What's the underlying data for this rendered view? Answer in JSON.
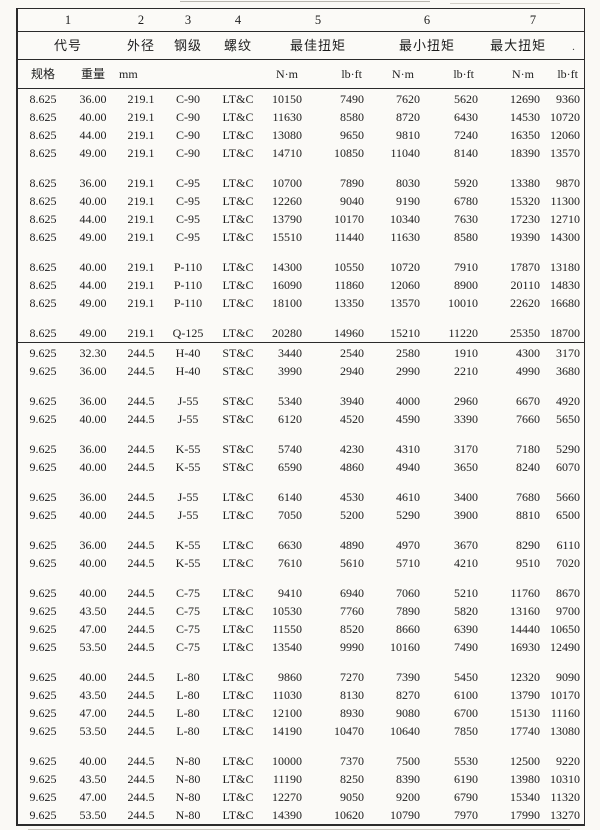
{
  "table": {
    "column_numbers": [
      "1",
      "2",
      "3",
      "4",
      "5",
      "6",
      "7"
    ],
    "headers": {
      "code": "代号",
      "outer_diameter": "外径",
      "steel_grade": "钢级",
      "thread": "螺纹",
      "optimal_torque": "最佳扭矩",
      "min_torque": "最小扭矩",
      "max_torque": "最大扭矩"
    },
    "artifacts": {
      "stray_dot": "."
    },
    "subheaders": {
      "spec": "规格",
      "weight": "重量",
      "mm": "mm",
      "nm": "N·m",
      "lbft": "lb·ft"
    },
    "sections": [
      {
        "groups": [
          {
            "rows": [
              [
                "8.625",
                "36.00",
                "219.1",
                "C-90",
                "LT&C",
                "10150",
                "7490",
                "7620",
                "5620",
                "12690",
                "9360"
              ],
              [
                "8.625",
                "40.00",
                "219.1",
                "C-90",
                "LT&C",
                "11630",
                "8580",
                "8720",
                "6430",
                "14530",
                "10720"
              ],
              [
                "8.625",
                "44.00",
                "219.1",
                "C-90",
                "LT&C",
                "13080",
                "9650",
                "9810",
                "7240",
                "16350",
                "12060"
              ],
              [
                "8.625",
                "49.00",
                "219.1",
                "C-90",
                "LT&C",
                "14710",
                "10850",
                "11040",
                "8140",
                "18390",
                "13570"
              ]
            ]
          },
          {
            "rows": [
              [
                "8.625",
                "36.00",
                "219.1",
                "C-95",
                "LT&C",
                "10700",
                "7890",
                "8030",
                "5920",
                "13380",
                "9870"
              ],
              [
                "8.625",
                "40.00",
                "219.1",
                "C-95",
                "LT&C",
                "12260",
                "9040",
                "9190",
                "6780",
                "15320",
                "11300"
              ],
              [
                "8.625",
                "44.00",
                "219.1",
                "C-95",
                "LT&C",
                "13790",
                "10170",
                "10340",
                "7630",
                "17230",
                "12710"
              ],
              [
                "8.625",
                "49.00",
                "219.1",
                "C-95",
                "LT&C",
                "15510",
                "11440",
                "11630",
                "8580",
                "19390",
                "14300"
              ]
            ]
          },
          {
            "rows": [
              [
                "8.625",
                "40.00",
                "219.1",
                "P-110",
                "LT&C",
                "14300",
                "10550",
                "10720",
                "7910",
                "17870",
                "13180"
              ],
              [
                "8.625",
                "44.00",
                "219.1",
                "P-110",
                "LT&C",
                "16090",
                "11860",
                "12060",
                "8900",
                "20110",
                "14830"
              ],
              [
                "8.625",
                "49.00",
                "219.1",
                "P-110",
                "LT&C",
                "18100",
                "13350",
                "13570",
                "10010",
                "22620",
                "16680"
              ]
            ]
          },
          {
            "rows": [
              [
                "8.625",
                "49.00",
                "219.1",
                "Q-125",
                "LT&C",
                "20280",
                "14960",
                "15210",
                "11220",
                "25350",
                "18700"
              ]
            ]
          }
        ]
      },
      {
        "groups": [
          {
            "rows": [
              [
                "9.625",
                "32.30",
                "244.5",
                "H-40",
                "ST&C",
                "3440",
                "2540",
                "2580",
                "1910",
                "4300",
                "3170"
              ],
              [
                "9.625",
                "36.00",
                "244.5",
                "H-40",
                "ST&C",
                "3990",
                "2940",
                "2990",
                "2210",
                "4990",
                "3680"
              ]
            ]
          },
          {
            "rows": [
              [
                "9.625",
                "36.00",
                "244.5",
                "J-55",
                "ST&C",
                "5340",
                "3940",
                "4000",
                "2960",
                "6670",
                "4920"
              ],
              [
                "9.625",
                "40.00",
                "244.5",
                "J-55",
                "ST&C",
                "6120",
                "4520",
                "4590",
                "3390",
                "7660",
                "5650"
              ]
            ]
          },
          {
            "rows": [
              [
                "9.625",
                "36.00",
                "244.5",
                "K-55",
                "ST&C",
                "5740",
                "4230",
                "4310",
                "3170",
                "7180",
                "5290"
              ],
              [
                "9.625",
                "40.00",
                "244.5",
                "K-55",
                "ST&C",
                "6590",
                "4860",
                "4940",
                "3650",
                "8240",
                "6070"
              ]
            ]
          },
          {
            "rows": [
              [
                "9.625",
                "36.00",
                "244.5",
                "J-55",
                "LT&C",
                "6140",
                "4530",
                "4610",
                "3400",
                "7680",
                "5660"
              ],
              [
                "9.625",
                "40.00",
                "244.5",
                "J-55",
                "LT&C",
                "7050",
                "5200",
                "5290",
                "3900",
                "8810",
                "6500"
              ]
            ]
          },
          {
            "rows": [
              [
                "9.625",
                "36.00",
                "244.5",
                "K-55",
                "LT&C",
                "6630",
                "4890",
                "4970",
                "3670",
                "8290",
                "6110"
              ],
              [
                "9.625",
                "40.00",
                "244.5",
                "K-55",
                "LT&C",
                "7610",
                "5610",
                "5710",
                "4210",
                "9510",
                "7020"
              ]
            ]
          },
          {
            "rows": [
              [
                "9.625",
                "40.00",
                "244.5",
                "C-75",
                "LT&C",
                "9410",
                "6940",
                "7060",
                "5210",
                "11760",
                "8670"
              ],
              [
                "9.625",
                "43.50",
                "244.5",
                "C-75",
                "LT&C",
                "10530",
                "7760",
                "7890",
                "5820",
                "13160",
                "9700"
              ],
              [
                "9.625",
                "47.00",
                "244.5",
                "C-75",
                "LT&C",
                "11550",
                "8520",
                "8660",
                "6390",
                "14440",
                "10650"
              ],
              [
                "9.625",
                "53.50",
                "244.5",
                "C-75",
                "LT&C",
                "13540",
                "9990",
                "10160",
                "7490",
                "16930",
                "12490"
              ]
            ]
          },
          {
            "rows": [
              [
                "9.625",
                "40.00",
                "244.5",
                "L-80",
                "LT&C",
                "9860",
                "7270",
                "7390",
                "5450",
                "12320",
                "9090"
              ],
              [
                "9.625",
                "43.50",
                "244.5",
                "L-80",
                "LT&C",
                "11030",
                "8130",
                "8270",
                "6100",
                "13790",
                "10170"
              ],
              [
                "9.625",
                "47.00",
                "244.5",
                "L-80",
                "LT&C",
                "12100",
                "8930",
                "9080",
                "6700",
                "15130",
                "11160"
              ],
              [
                "9.625",
                "53.50",
                "244.5",
                "L-80",
                "LT&C",
                "14190",
                "10470",
                "10640",
                "7850",
                "17740",
                "13080"
              ]
            ]
          },
          {
            "rows": [
              [
                "9.625",
                "40.00",
                "244.5",
                "N-80",
                "LT&C",
                "10000",
                "7370",
                "7500",
                "5530",
                "12500",
                "9220"
              ],
              [
                "9.625",
                "43.50",
                "244.5",
                "N-80",
                "LT&C",
                "11190",
                "8250",
                "8390",
                "6190",
                "13980",
                "10310"
              ],
              [
                "9.625",
                "47.00",
                "244.5",
                "N-80",
                "LT&C",
                "12270",
                "9050",
                "9200",
                "6790",
                "15340",
                "11320"
              ],
              [
                "9.625",
                "53.50",
                "244.5",
                "N-80",
                "LT&C",
                "14390",
                "10620",
                "10790",
                "7970",
                "17990",
                "13270"
              ]
            ]
          }
        ]
      }
    ]
  }
}
